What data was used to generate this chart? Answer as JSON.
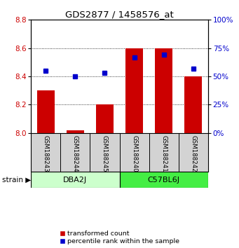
{
  "title": "GDS2877 / 1458576_at",
  "samples": [
    "GSM188243",
    "GSM188244",
    "GSM188245",
    "GSM188240",
    "GSM188241",
    "GSM188242"
  ],
  "group_labels": [
    "DBA2J",
    "C57BL6J"
  ],
  "group_colors_dba": "#ccffcc",
  "group_colors_c57": "#44ee44",
  "transformed_counts": [
    8.3,
    8.02,
    8.2,
    8.6,
    8.6,
    8.4
  ],
  "percentile_ranks": [
    55,
    50,
    53,
    67,
    69,
    57
  ],
  "bar_color": "#cc0000",
  "dot_color": "#0000cc",
  "ylim_left": [
    8.0,
    8.8
  ],
  "ylim_right": [
    0,
    100
  ],
  "yticks_left": [
    8.0,
    8.2,
    8.4,
    8.6,
    8.8
  ],
  "yticks_right": [
    0,
    25,
    50,
    75,
    100
  ],
  "ylabel_left_color": "#cc0000",
  "ylabel_right_color": "#0000cc",
  "background_color": "#ffffff",
  "legend_red_label": "transformed count",
  "legend_blue_label": "percentile rank within the sample",
  "bar_bottom": 8.0,
  "sample_bg_color": "#d3d3d3"
}
